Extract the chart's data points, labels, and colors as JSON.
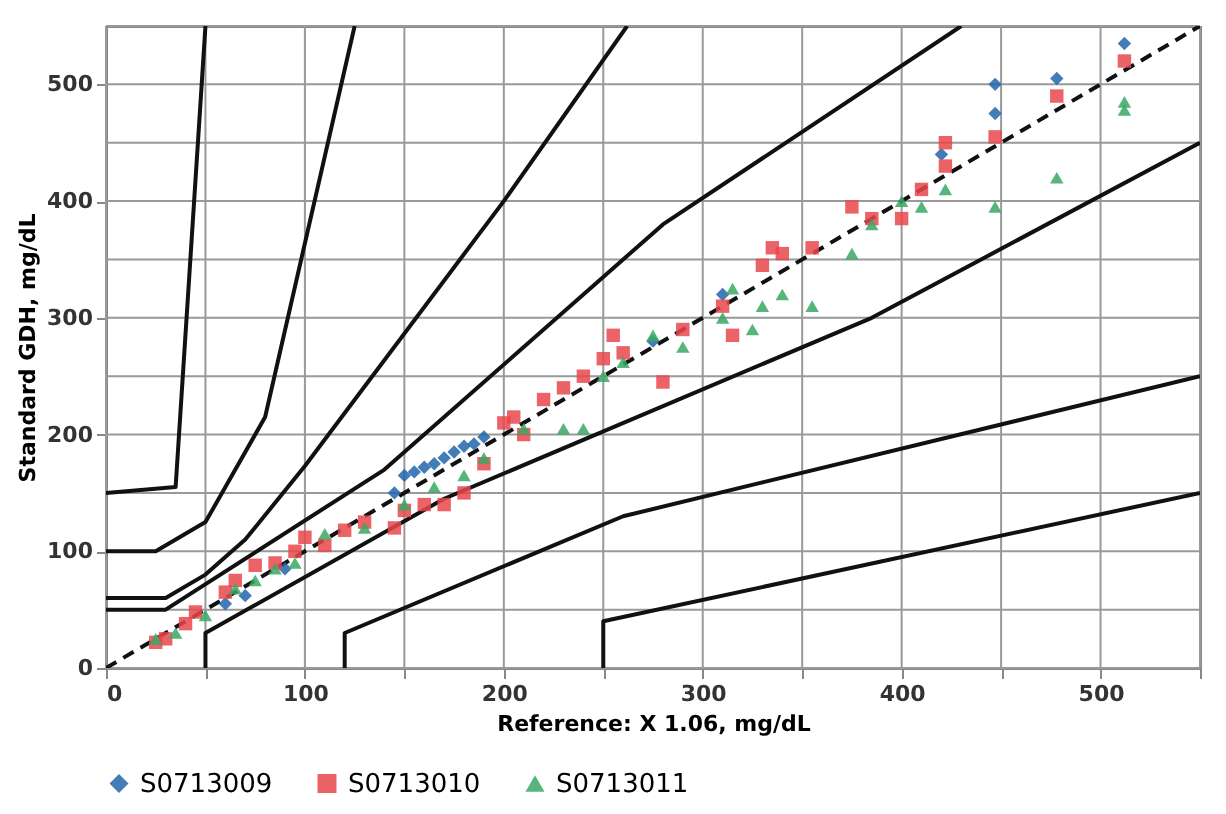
{
  "chart_data": {
    "type": "scatter",
    "xlabel": "Reference: X 1.06, mg/dL",
    "ylabel": "Standard GDH, mg/dL",
    "xlim": [
      0,
      550
    ],
    "ylim": [
      0,
      550
    ],
    "xticks": [
      0,
      {
        "value": 50,
        "label": null
      },
      100,
      {
        "value": 150,
        "label": null
      },
      200,
      {
        "value": 250,
        "label": null
      },
      300,
      {
        "value": 350,
        "label": null
      },
      400,
      {
        "value": 450,
        "label": null
      },
      500,
      {
        "value": 550,
        "label": null
      }
    ],
    "yticks": [
      0,
      {
        "value": 50,
        "label": null
      },
      100,
      {
        "value": 150,
        "label": null
      },
      200,
      {
        "value": 250,
        "label": null
      },
      300,
      {
        "value": 350,
        "label": null
      },
      400,
      {
        "value": 450,
        "label": null
      },
      500,
      {
        "value": 550,
        "label": null
      }
    ],
    "grid": true,
    "legend": "bottom",
    "series": [
      {
        "type": "line",
        "color": "#111111",
        "line_style": "solid",
        "marker": "none",
        "x": [
          0,
          30,
          140,
          280,
          430
        ],
        "values": [
          50,
          50,
          170,
          380,
          550
        ]
      },
      {
        "type": "line",
        "color": "#111111",
        "line_style": "solid",
        "marker": "none",
        "x": [
          0,
          30,
          50,
          70,
          100,
          200,
          262
        ],
        "values": [
          60,
          60,
          80,
          110,
          173,
          400,
          550
        ]
      },
      {
        "type": "line",
        "color": "#111111",
        "line_style": "solid",
        "marker": "none",
        "x": [
          0,
          25,
          50,
          80,
          125
        ],
        "values": [
          100,
          100,
          125,
          215,
          550
        ]
      },
      {
        "type": "line",
        "color": "#111111",
        "line_style": "solid",
        "marker": "none",
        "x": [
          0,
          35,
          50
        ],
        "values": [
          150,
          155,
          550
        ]
      },
      {
        "type": "line",
        "color": "#111111",
        "line_style": "solid",
        "marker": "none",
        "x": [
          50,
          50,
          170,
          385,
          550
        ],
        "values": [
          0,
          30,
          145,
          300,
          450
        ]
      },
      {
        "type": "line",
        "color": "#111111",
        "line_style": "solid",
        "marker": "none",
        "x": [
          120,
          120,
          260,
          550
        ],
        "values": [
          0,
          30,
          130,
          250
        ]
      },
      {
        "type": "line",
        "color": "#111111",
        "line_style": "solid",
        "marker": "none",
        "x": [
          250,
          250,
          550
        ],
        "values": [
          0,
          40,
          150
        ]
      },
      {
        "type": "line",
        "color": "#111111",
        "line_style": "dashed",
        "marker": "none",
        "x": [
          0,
          550
        ],
        "values": [
          0,
          550
        ]
      },
      {
        "name": "S0713009",
        "color": "#2166ac",
        "marker": "diamond",
        "x": [
          60,
          70,
          90,
          145,
          150,
          155,
          160,
          165,
          170,
          175,
          180,
          185,
          190,
          275,
          310,
          420,
          447,
          447,
          478,
          512
        ],
        "values": [
          55,
          62,
          85,
          150,
          165,
          168,
          172,
          175,
          180,
          185,
          190,
          192,
          198,
          280,
          320,
          440,
          500,
          475,
          505,
          535
        ]
      },
      {
        "name": "S0713010",
        "color": "#e8474c",
        "marker": "square",
        "x": [
          25,
          30,
          40,
          45,
          60,
          65,
          75,
          85,
          95,
          100,
          110,
          120,
          130,
          145,
          150,
          160,
          170,
          180,
          190,
          200,
          205,
          210,
          220,
          230,
          240,
          250,
          255,
          260,
          280,
          290,
          310,
          315,
          330,
          335,
          340,
          355,
          375,
          385,
          400,
          410,
          422,
          422,
          447,
          478,
          512
        ],
        "values": [
          22,
          25,
          38,
          48,
          65,
          75,
          88,
          90,
          100,
          112,
          105,
          118,
          125,
          120,
          135,
          140,
          140,
          150,
          175,
          210,
          215,
          200,
          230,
          240,
          250,
          265,
          285,
          270,
          245,
          290,
          310,
          285,
          345,
          360,
          355,
          360,
          395,
          385,
          385,
          410,
          450,
          430,
          455,
          490,
          520
        ]
      },
      {
        "name": "S0713011",
        "color": "#3aa864",
        "marker": "triangle",
        "x": [
          25,
          35,
          50,
          65,
          75,
          85,
          95,
          110,
          130,
          150,
          165,
          180,
          190,
          210,
          230,
          240,
          250,
          260,
          275,
          290,
          310,
          315,
          325,
          330,
          340,
          355,
          375,
          385,
          400,
          410,
          422,
          447,
          478,
          512,
          512
        ],
        "values": [
          25,
          30,
          45,
          68,
          75,
          85,
          90,
          115,
          120,
          140,
          155,
          165,
          180,
          205,
          205,
          205,
          250,
          262,
          285,
          275,
          300,
          325,
          290,
          310,
          320,
          310,
          355,
          380,
          400,
          395,
          410,
          395,
          420,
          485,
          478
        ]
      }
    ]
  }
}
